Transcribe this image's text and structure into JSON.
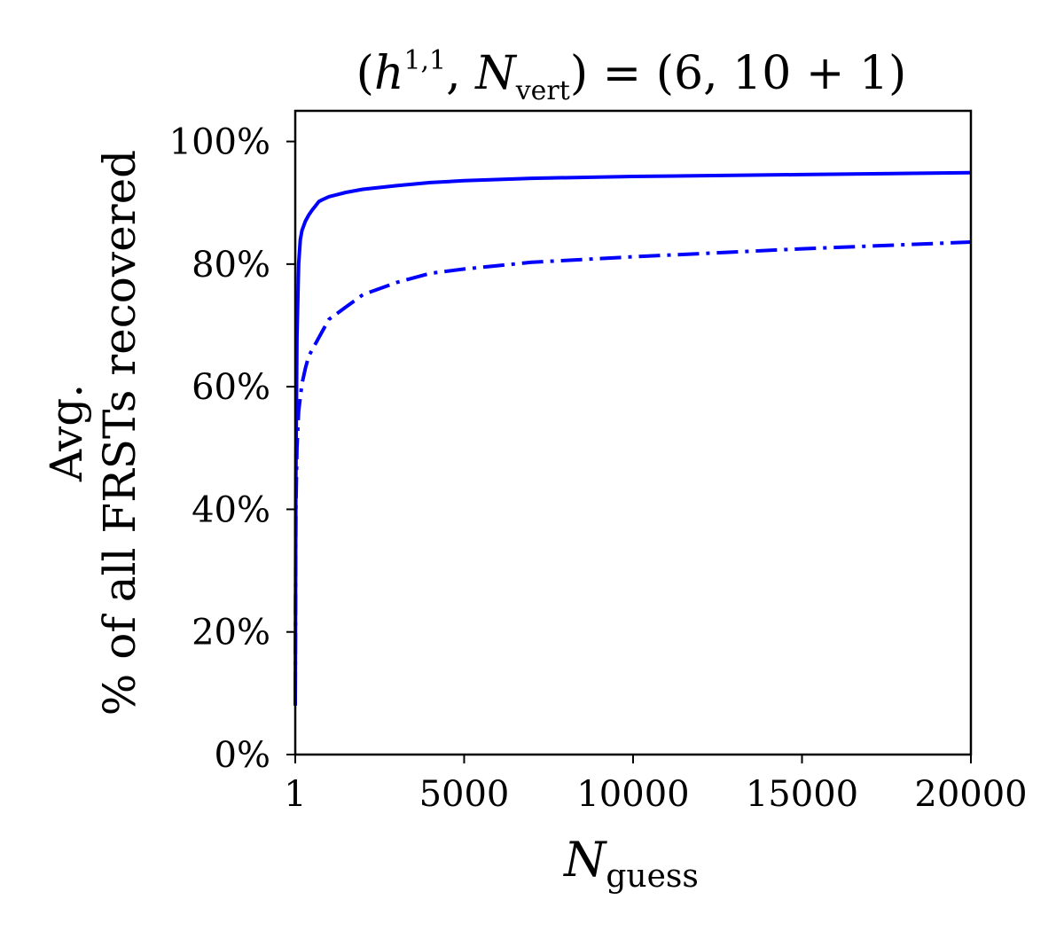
{
  "chart_data": {
    "type": "line",
    "title": {
      "open": "(",
      "h": "h",
      "h_sup": "1,1",
      "comma": ", ",
      "N": "N",
      "N_sub": "vert",
      "rest": ") = (6, 10 + 1)"
    },
    "xlabel": {
      "main": "N",
      "sub": "guess"
    },
    "ylabel": {
      "line1": "Avg.",
      "line2": "% of all FRSTs recovered"
    },
    "xlim": [
      1,
      20000
    ],
    "ylim": [
      0,
      105
    ],
    "xticks": [
      {
        "value": 1,
        "label": "1"
      },
      {
        "value": 5000,
        "label": "5000"
      },
      {
        "value": 10000,
        "label": "10000"
      },
      {
        "value": 15000,
        "label": "15000"
      },
      {
        "value": 20000,
        "label": "20000"
      }
    ],
    "yticks": [
      {
        "value": 0,
        "label": "0%"
      },
      {
        "value": 20,
        "label": "20%"
      },
      {
        "value": 40,
        "label": "40%"
      },
      {
        "value": 60,
        "label": "60%"
      },
      {
        "value": 80,
        "label": "80%"
      },
      {
        "value": 100,
        "label": "100%"
      }
    ],
    "series": [
      {
        "name": "solid",
        "style": "solid",
        "color": "#0000ff",
        "x": [
          1,
          20,
          50,
          100,
          150,
          200,
          300,
          400,
          500,
          600,
          700,
          800,
          1000,
          1500,
          2000,
          3000,
          4000,
          5000,
          7000,
          10000,
          15000,
          20000
        ],
        "y": [
          8,
          45,
          68,
          80,
          84,
          85.5,
          87,
          88,
          88.8,
          89.5,
          90.2,
          90.5,
          91,
          91.7,
          92.2,
          92.8,
          93.3,
          93.6,
          94,
          94.3,
          94.6,
          94.9
        ]
      },
      {
        "name": "dash-dot",
        "style": "dashdot",
        "color": "#0000ff",
        "x": [
          1,
          20,
          50,
          100,
          200,
          300,
          400,
          600,
          800,
          1000,
          1500,
          2000,
          3000,
          4000,
          5000,
          7000,
          10000,
          15000,
          20000
        ],
        "y": [
          10,
          40,
          50,
          56,
          60.5,
          63,
          65,
          67,
          69,
          71,
          73,
          75,
          77,
          78.5,
          79.2,
          80.3,
          81.2,
          82.5,
          83.6
        ]
      }
    ]
  }
}
